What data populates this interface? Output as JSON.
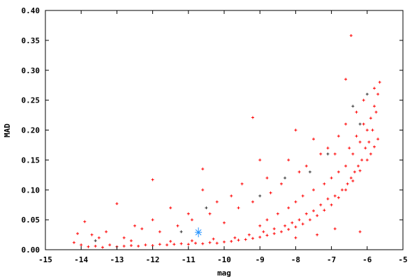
{
  "chart_data": {
    "type": "scatter",
    "title": "",
    "xlabel": "mag",
    "ylabel": "MAD",
    "xlim": [
      -15,
      -5
    ],
    "ylim": [
      0,
      0.4
    ],
    "grid": false,
    "legend": "none",
    "x_ticks": [
      "-15",
      "-14",
      "-13",
      "-12",
      "-11",
      "-10",
      "-9",
      "-8",
      "-7",
      "-6",
      "-5"
    ],
    "y_ticks": [
      "0.00",
      "0.05",
      "0.10",
      "0.15",
      "0.20",
      "0.25",
      "0.30",
      "0.35",
      "0.40"
    ],
    "series": [
      {
        "color": "#ff0000",
        "marker": "plus",
        "points": [
          [
            -14.2,
            0.012
          ],
          [
            -14.0,
            0.008
          ],
          [
            -13.8,
            0.005
          ],
          [
            -13.6,
            0.006
          ],
          [
            -13.4,
            0.004
          ],
          [
            -13.2,
            0.008
          ],
          [
            -13.0,
            0.005
          ],
          [
            -12.8,
            0.006
          ],
          [
            -12.6,
            0.007
          ],
          [
            -12.4,
            0.006
          ],
          [
            -12.2,
            0.008
          ],
          [
            -12.0,
            0.007
          ],
          [
            -11.8,
            0.009
          ],
          [
            -11.6,
            0.008
          ],
          [
            -11.4,
            0.009
          ],
          [
            -11.2,
            0.01
          ],
          [
            -11.0,
            0.009
          ],
          [
            -10.8,
            0.011
          ],
          [
            -10.6,
            0.01
          ],
          [
            -10.4,
            0.012
          ],
          [
            -10.2,
            0.011
          ],
          [
            -10.0,
            0.013
          ],
          [
            -9.8,
            0.014
          ],
          [
            -9.6,
            0.016
          ],
          [
            -9.4,
            0.017
          ],
          [
            -9.2,
            0.019
          ],
          [
            -9.0,
            0.021
          ],
          [
            -8.8,
            0.024
          ],
          [
            -8.6,
            0.027
          ],
          [
            -8.4,
            0.03
          ],
          [
            -8.2,
            0.034
          ],
          [
            -8.0,
            0.038
          ],
          [
            -7.8,
            0.043
          ],
          [
            -7.6,
            0.05
          ],
          [
            -7.4,
            0.057
          ],
          [
            -7.2,
            0.066
          ],
          [
            -7.0,
            0.075
          ],
          [
            -6.8,
            0.087
          ],
          [
            -6.6,
            0.1
          ],
          [
            -6.4,
            0.115
          ],
          [
            -6.2,
            0.132
          ],
          [
            -6.0,
            0.15
          ],
          [
            -5.9,
            0.16
          ],
          [
            -5.8,
            0.172
          ],
          [
            -5.7,
            0.185
          ],
          [
            -9.0,
            0.04
          ],
          [
            -8.8,
            0.05
          ],
          [
            -8.5,
            0.06
          ],
          [
            -8.2,
            0.07
          ],
          [
            -8.0,
            0.08
          ],
          [
            -7.8,
            0.09
          ],
          [
            -7.5,
            0.1
          ],
          [
            -7.2,
            0.11
          ],
          [
            -7.0,
            0.12
          ],
          [
            -6.8,
            0.13
          ],
          [
            -6.6,
            0.14
          ],
          [
            -6.4,
            0.16
          ],
          [
            -6.2,
            0.18
          ],
          [
            -6.0,
            0.2
          ],
          [
            -5.9,
            0.22
          ],
          [
            -5.8,
            0.24
          ],
          [
            -5.7,
            0.26
          ],
          [
            -5.65,
            0.28
          ],
          [
            -6.1,
            0.21
          ],
          [
            -6.3,
            0.19
          ],
          [
            -6.5,
            0.17
          ],
          [
            -5.75,
            0.23
          ],
          [
            -5.85,
            0.2
          ],
          [
            -5.95,
            0.18
          ],
          [
            -6.05,
            0.17
          ],
          [
            -6.15,
            0.15
          ],
          [
            -6.25,
            0.14
          ],
          [
            -6.35,
            0.13
          ],
          [
            -6.45,
            0.12
          ],
          [
            -6.55,
            0.11
          ],
          [
            -6.7,
            0.1
          ],
          [
            -6.9,
            0.09
          ],
          [
            -7.1,
            0.085
          ],
          [
            -7.3,
            0.075
          ],
          [
            -7.5,
            0.065
          ],
          [
            -7.7,
            0.06
          ],
          [
            -7.9,
            0.05
          ],
          [
            -8.1,
            0.045
          ],
          [
            -8.3,
            0.04
          ],
          [
            -8.6,
            0.035
          ],
          [
            -8.9,
            0.03
          ],
          [
            -9.3,
            0.025
          ],
          [
            -9.7,
            0.02
          ],
          [
            -10.3,
            0.018
          ],
          [
            -10.9,
            0.015
          ],
          [
            -11.5,
            0.014
          ],
          [
            -6.45,
            0.358
          ],
          [
            -9.2,
            0.221
          ],
          [
            -12.0,
            0.117
          ],
          [
            -10.6,
            0.135
          ],
          [
            -6.6,
            0.285
          ],
          [
            -6.9,
            0.16
          ],
          [
            -7.5,
            0.185
          ],
          [
            -8.0,
            0.2
          ],
          [
            -8.2,
            0.15
          ],
          [
            -8.8,
            0.12
          ],
          [
            -9.0,
            0.15
          ],
          [
            -9.5,
            0.11
          ],
          [
            -9.8,
            0.09
          ],
          [
            -10.2,
            0.08
          ],
          [
            -10.6,
            0.1
          ],
          [
            -11.0,
            0.06
          ],
          [
            -11.5,
            0.07
          ],
          [
            -12.0,
            0.05
          ],
          [
            -12.5,
            0.04
          ],
          [
            -13.0,
            0.077
          ],
          [
            -13.3,
            0.03
          ],
          [
            -13.9,
            0.047
          ],
          [
            -14.1,
            0.027
          ],
          [
            -13.7,
            0.025
          ],
          [
            -12.8,
            0.02
          ],
          [
            -12.3,
            0.035
          ],
          [
            -11.8,
            0.03
          ],
          [
            -11.3,
            0.04
          ],
          [
            -10.9,
            0.05
          ],
          [
            -10.4,
            0.06
          ],
          [
            -10.0,
            0.045
          ],
          [
            -9.6,
            0.07
          ],
          [
            -9.2,
            0.08
          ],
          [
            -8.7,
            0.095
          ],
          [
            -8.4,
            0.11
          ],
          [
            -7.9,
            0.13
          ],
          [
            -7.7,
            0.14
          ],
          [
            -7.3,
            0.16
          ],
          [
            -7.1,
            0.17
          ],
          [
            -6.8,
            0.19
          ],
          [
            -6.6,
            0.21
          ],
          [
            -6.3,
            0.23
          ],
          [
            -6.1,
            0.25
          ],
          [
            -5.8,
            0.27
          ],
          [
            -6.2,
            0.03
          ],
          [
            -6.9,
            0.035
          ],
          [
            -7.4,
            0.025
          ],
          [
            -8.0,
            0.02
          ],
          [
            -12.6,
            0.015
          ],
          [
            -13.5,
            0.02
          ]
        ]
      },
      {
        "color": "#333333",
        "marker": "plus",
        "points": [
          [
            -6.4,
            0.24
          ],
          [
            -6.2,
            0.21
          ],
          [
            -7.1,
            0.16
          ],
          [
            -7.6,
            0.13
          ],
          [
            -8.3,
            0.12
          ],
          [
            -9.0,
            0.09
          ],
          [
            -10.5,
            0.07
          ],
          [
            -11.2,
            0.03
          ],
          [
            -13.6,
            0.015
          ],
          [
            -6.0,
            0.26
          ]
        ]
      },
      {
        "color": "#1e90ff",
        "marker": "star",
        "points": [
          [
            -10.72,
            0.029
          ]
        ]
      }
    ]
  }
}
